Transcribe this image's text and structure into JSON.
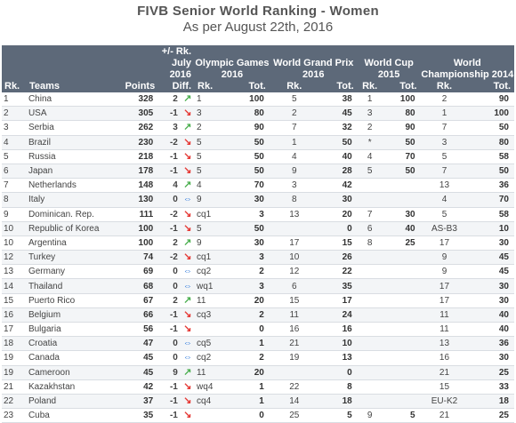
{
  "title": "FIVB Senior World Ranking - Women",
  "subtitle": "As per August 22th, 2016",
  "headers": {
    "rank": "Rk.",
    "teams": "Teams",
    "points": "Points",
    "change": "+/- Rk. July 2016",
    "diff": "Diff.",
    "olympic": "Olympic Games 2016",
    "grandprix": "World Grand Prix 2016",
    "worldcup": "World Cup 2015",
    "championship": "World Championship 2014",
    "sub_rk": "Rk.",
    "sub_tot": "Tot."
  },
  "colors": {
    "header_bg": "#5d6979",
    "up": "#4caf50",
    "down": "#e53935",
    "same": "#1e6fd9"
  },
  "rows": [
    {
      "rk": "1",
      "team": "China",
      "points": "328",
      "diff": "2",
      "dir": "up",
      "og_rk": "1",
      "og_tot": "100",
      "gp_rk": "5",
      "gp_tot": "38",
      "wc_rk": "1",
      "wc_tot": "100",
      "ch_rk": "2",
      "ch_tot": "90"
    },
    {
      "rk": "2",
      "team": "USA",
      "points": "305",
      "diff": "-1",
      "dir": "down",
      "og_rk": "3",
      "og_tot": "80",
      "gp_rk": "2",
      "gp_tot": "45",
      "wc_rk": "3",
      "wc_tot": "80",
      "ch_rk": "1",
      "ch_tot": "100"
    },
    {
      "rk": "3",
      "team": "Serbia",
      "points": "262",
      "diff": "3",
      "dir": "up",
      "og_rk": "2",
      "og_tot": "90",
      "gp_rk": "7",
      "gp_tot": "32",
      "wc_rk": "2",
      "wc_tot": "90",
      "ch_rk": "7",
      "ch_tot": "50"
    },
    {
      "rk": "4",
      "team": "Brazil",
      "points": "230",
      "diff": "-2",
      "dir": "down",
      "og_rk": "5",
      "og_tot": "50",
      "gp_rk": "1",
      "gp_tot": "50",
      "wc_rk": "*",
      "wc_tot": "50",
      "ch_rk": "3",
      "ch_tot": "80"
    },
    {
      "rk": "5",
      "team": "Russia",
      "points": "218",
      "diff": "-1",
      "dir": "down",
      "og_rk": "5",
      "og_tot": "50",
      "gp_rk": "4",
      "gp_tot": "40",
      "wc_rk": "4",
      "wc_tot": "70",
      "ch_rk": "5",
      "ch_tot": "58"
    },
    {
      "rk": "6",
      "team": "Japan",
      "points": "178",
      "diff": "-1",
      "dir": "down",
      "og_rk": "5",
      "og_tot": "50",
      "gp_rk": "9",
      "gp_tot": "28",
      "wc_rk": "5",
      "wc_tot": "50",
      "ch_rk": "7",
      "ch_tot": "50"
    },
    {
      "rk": "7",
      "team": "Netherlands",
      "points": "148",
      "diff": "4",
      "dir": "up",
      "og_rk": "4",
      "og_tot": "70",
      "gp_rk": "3",
      "gp_tot": "42",
      "wc_rk": "",
      "wc_tot": "",
      "ch_rk": "13",
      "ch_tot": "36"
    },
    {
      "rk": "8",
      "team": "Italy",
      "points": "130",
      "diff": "0",
      "dir": "same",
      "og_rk": "9",
      "og_tot": "30",
      "gp_rk": "8",
      "gp_tot": "30",
      "wc_rk": "",
      "wc_tot": "",
      "ch_rk": "4",
      "ch_tot": "70"
    },
    {
      "rk": "9",
      "team": "Dominican. Rep.",
      "points": "111",
      "diff": "-2",
      "dir": "down",
      "og_rk": "cq1",
      "og_tot": "3",
      "gp_rk": "13",
      "gp_tot": "20",
      "wc_rk": "7",
      "wc_tot": "30",
      "ch_rk": "5",
      "ch_tot": "58"
    },
    {
      "rk": "10",
      "team": "Republic of Korea",
      "points": "100",
      "diff": "-1",
      "dir": "down",
      "og_rk": "5",
      "og_tot": "50",
      "gp_rk": "",
      "gp_tot": "0",
      "wc_rk": "6",
      "wc_tot": "40",
      "ch_rk": "AS-B3",
      "ch_tot": "10"
    },
    {
      "rk": "10",
      "team": "Argentina",
      "points": "100",
      "diff": "2",
      "dir": "up",
      "og_rk": "9",
      "og_tot": "30",
      "gp_rk": "17",
      "gp_tot": "15",
      "wc_rk": "8",
      "wc_tot": "25",
      "ch_rk": "17",
      "ch_tot": "30"
    },
    {
      "rk": "12",
      "team": "Turkey",
      "points": "74",
      "diff": "-2",
      "dir": "down",
      "og_rk": "cq1",
      "og_tot": "3",
      "gp_rk": "10",
      "gp_tot": "26",
      "wc_rk": "",
      "wc_tot": "",
      "ch_rk": "9",
      "ch_tot": "45"
    },
    {
      "rk": "13",
      "team": "Germany",
      "points": "69",
      "diff": "0",
      "dir": "same",
      "og_rk": "cq2",
      "og_tot": "2",
      "gp_rk": "12",
      "gp_tot": "22",
      "wc_rk": "",
      "wc_tot": "",
      "ch_rk": "9",
      "ch_tot": "45"
    },
    {
      "rk": "14",
      "team": "Thailand",
      "points": "68",
      "diff": "0",
      "dir": "same",
      "og_rk": "wq1",
      "og_tot": "3",
      "gp_rk": "6",
      "gp_tot": "35",
      "wc_rk": "",
      "wc_tot": "",
      "ch_rk": "17",
      "ch_tot": "30"
    },
    {
      "rk": "15",
      "team": "Puerto Rico",
      "points": "67",
      "diff": "2",
      "dir": "up",
      "og_rk": "11",
      "og_tot": "20",
      "gp_rk": "15",
      "gp_tot": "17",
      "wc_rk": "",
      "wc_tot": "",
      "ch_rk": "17",
      "ch_tot": "30"
    },
    {
      "rk": "16",
      "team": "Belgium",
      "points": "66",
      "diff": "-1",
      "dir": "down",
      "og_rk": "cq3",
      "og_tot": "2",
      "gp_rk": "11",
      "gp_tot": "24",
      "wc_rk": "",
      "wc_tot": "",
      "ch_rk": "11",
      "ch_tot": "40"
    },
    {
      "rk": "17",
      "team": "Bulgaria",
      "points": "56",
      "diff": "-1",
      "dir": "down",
      "og_rk": "",
      "og_tot": "0",
      "gp_rk": "16",
      "gp_tot": "16",
      "wc_rk": "",
      "wc_tot": "",
      "ch_rk": "11",
      "ch_tot": "40"
    },
    {
      "rk": "18",
      "team": "Croatia",
      "points": "47",
      "diff": "0",
      "dir": "same",
      "og_rk": "cq5",
      "og_tot": "1",
      "gp_rk": "21",
      "gp_tot": "10",
      "wc_rk": "",
      "wc_tot": "",
      "ch_rk": "13",
      "ch_tot": "36"
    },
    {
      "rk": "19",
      "team": "Canada",
      "points": "45",
      "diff": "0",
      "dir": "same",
      "og_rk": "cq2",
      "og_tot": "2",
      "gp_rk": "19",
      "gp_tot": "13",
      "wc_rk": "",
      "wc_tot": "",
      "ch_rk": "16",
      "ch_tot": "30"
    },
    {
      "rk": "19",
      "team": "Cameroon",
      "points": "45",
      "diff": "9",
      "dir": "up",
      "og_rk": "11",
      "og_tot": "20",
      "gp_rk": "",
      "gp_tot": "0",
      "wc_rk": "",
      "wc_tot": "",
      "ch_rk": "21",
      "ch_tot": "25"
    },
    {
      "rk": "21",
      "team": "Kazakhstan",
      "points": "42",
      "diff": "-1",
      "dir": "down",
      "og_rk": "wq4",
      "og_tot": "1",
      "gp_rk": "22",
      "gp_tot": "8",
      "wc_rk": "",
      "wc_tot": "",
      "ch_rk": "15",
      "ch_tot": "33"
    },
    {
      "rk": "22",
      "team": "Poland",
      "points": "37",
      "diff": "-1",
      "dir": "down",
      "og_rk": "cq4",
      "og_tot": "1",
      "gp_rk": "14",
      "gp_tot": "18",
      "wc_rk": "",
      "wc_tot": "",
      "ch_rk": "EU-K2",
      "ch_tot": "18"
    },
    {
      "rk": "23",
      "team": "Cuba",
      "points": "35",
      "diff": "-1",
      "dir": "down",
      "og_rk": "",
      "og_tot": "0",
      "gp_rk": "25",
      "gp_tot": "5",
      "wc_rk": "9",
      "wc_tot": "5",
      "ch_rk": "21",
      "ch_tot": "25"
    }
  ]
}
